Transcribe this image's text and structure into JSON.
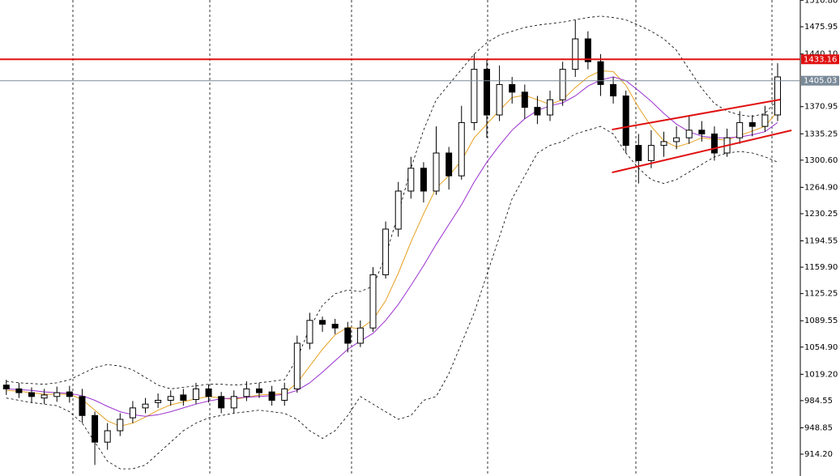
{
  "chart_data": {
    "type": "candlestick",
    "ylim": [
      885.5,
      1511.1
    ],
    "yticks": [
      {
        "value": 1510.8,
        "label": "1510.80"
      },
      1475.95,
      {
        "value": 1440.1,
        "label": "1440.10"
      },
      1370.95,
      1335.25,
      {
        "value": 1300.6,
        "label": "1300.60"
      },
      {
        "value": 1264.9,
        "label": "1264.90"
      },
      1230.25,
      1194.55,
      {
        "value": 1159.9,
        "label": "1159.90"
      },
      1125.25,
      1089.55,
      {
        "value": 1054.9,
        "label": "1054.90"
      },
      {
        "value": 1019.2,
        "label": "1019.20"
      },
      984.55,
      948.85,
      {
        "value": 914.2,
        "label": "914.20"
      }
    ],
    "up_color": "#ffffff",
    "down_color": "#000000",
    "open": [
      1005,
      1000,
      995,
      988,
      990,
      996,
      990,
      965,
      930,
      945,
      962,
      975,
      982,
      985,
      992,
      986,
      1000,
      990,
      975,
      990,
      1000,
      996,
      985,
      1000,
      1060,
      1090,
      1085,
      1080,
      1060,
      1080,
      1150,
      1210,
      1260,
      1290,
      1260,
      1310,
      1280,
      1350,
      1420,
      1360,
      1400,
      1390,
      1370,
      1360,
      1380,
      1420,
      1460,
      1430,
      1400,
      1385,
      1320,
      1300,
      1320,
      1325,
      1330,
      1340,
      1335,
      1310,
      1330,
      1350,
      1345,
      1360
    ],
    "high": [
      1012,
      1008,
      1002,
      1000,
      1003,
      1004,
      1000,
      970,
      955,
      968,
      984,
      988,
      994,
      998,
      1000,
      1008,
      1006,
      996,
      998,
      1010,
      1008,
      1004,
      1008,
      1070,
      1100,
      1095,
      1092,
      1088,
      1090,
      1160,
      1220,
      1272,
      1305,
      1298,
      1345,
      1318,
      1372,
      1440,
      1432,
      1425,
      1410,
      1400,
      1385,
      1392,
      1430,
      1485,
      1470,
      1440,
      1410,
      1392,
      1335,
      1340,
      1338,
      1345,
      1358,
      1352,
      1345,
      1342,
      1365,
      1360,
      1372,
      1428
    ],
    "low": [
      992,
      988,
      982,
      980,
      983,
      982,
      955,
      900,
      920,
      938,
      955,
      968,
      975,
      978,
      978,
      980,
      982,
      968,
      968,
      984,
      988,
      978,
      978,
      995,
      1052,
      1075,
      1072,
      1048,
      1055,
      1075,
      1145,
      1200,
      1250,
      1245,
      1255,
      1262,
      1275,
      1340,
      1330,
      1352,
      1375,
      1355,
      1348,
      1352,
      1372,
      1410,
      1420,
      1385,
      1375,
      1310,
      1270,
      1290,
      1305,
      1315,
      1322,
      1325,
      1300,
      1305,
      1322,
      1332,
      1338,
      1352
    ],
    "close": [
      1000,
      995,
      990,
      992,
      995,
      990,
      965,
      930,
      945,
      960,
      975,
      980,
      985,
      990,
      985,
      1000,
      990,
      975,
      990,
      1000,
      995,
      985,
      1000,
      1060,
      1090,
      1085,
      1080,
      1060,
      1080,
      1150,
      1210,
      1260,
      1290,
      1260,
      1310,
      1280,
      1350,
      1420,
      1360,
      1400,
      1390,
      1370,
      1360,
      1380,
      1420,
      1460,
      1430,
      1400,
      1385,
      1320,
      1300,
      1320,
      1325,
      1330,
      1340,
      1335,
      1310,
      1330,
      1350,
      1345,
      1360,
      1410
    ],
    "series": [
      {
        "color": "#e6a020",
        "dash": false,
        "values": [
          998,
          997,
          995,
          993,
          993,
          993,
          986,
          972,
          958,
          951,
          955,
          963,
          972,
          979,
          983,
          987,
          990,
          988,
          986,
          989,
          992,
          993,
          994,
          1008,
          1030,
          1052,
          1071,
          1081,
          1079,
          1091,
          1116,
          1152,
          1193,
          1230,
          1264,
          1280,
          1300,
          1330,
          1348,
          1366,
          1383,
          1386,
          1380,
          1374,
          1380,
          1396,
          1410,
          1418,
          1417,
          1399,
          1370,
          1345,
          1326,
          1318,
          1323,
          1330,
          1328,
          1327,
          1333,
          1339,
          1345,
          1365
        ]
      },
      {
        "color": "#9b30d0",
        "dash": false,
        "values": [
          1000,
          999,
          998,
          996,
          995,
          994,
          991,
          985,
          977,
          970,
          966,
          964,
          966,
          970,
          975,
          980,
          984,
          987,
          988,
          989,
          990,
          991,
          993,
          998,
          1008,
          1022,
          1037,
          1052,
          1063,
          1073,
          1090,
          1111,
          1136,
          1162,
          1190,
          1216,
          1242,
          1272,
          1298,
          1320,
          1340,
          1355,
          1366,
          1372,
          1376,
          1385,
          1398,
          1406,
          1410,
          1405,
          1392,
          1378,
          1362,
          1348,
          1338,
          1332,
          1330,
          1330,
          1331,
          1334,
          1338,
          1350
        ]
      },
      {
        "color": "#000000",
        "dash": true,
        "values": [
          1010,
          1008,
          1007,
          1006,
          1008,
          1012,
          1020,
          1028,
          1032,
          1030,
          1025,
          1015,
          1005,
          1000,
          1002,
          1004,
          1006,
          1006,
          1005,
          1006,
          1008,
          1010,
          1012,
          1040,
          1080,
          1110,
          1125,
          1130,
          1128,
          1135,
          1175,
          1230,
          1290,
          1340,
          1380,
          1400,
          1420,
          1440,
          1455,
          1465,
          1470,
          1475,
          1478,
          1480,
          1482,
          1485,
          1488,
          1490,
          1488,
          1485,
          1478,
          1470,
          1460,
          1445,
          1420,
          1395,
          1375,
          1365,
          1360,
          1358,
          1362,
          1380
        ]
      },
      {
        "color": "#000000",
        "dash": true,
        "values": [
          988,
          985,
          982,
          980,
          978,
          970,
          955,
          930,
          905,
          895,
          895,
          900,
          915,
          930,
          945,
          955,
          962,
          965,
          968,
          970,
          972,
          970,
          968,
          960,
          945,
          935,
          945,
          965,
          990,
          980,
          970,
          960,
          965,
          985,
          990,
          1020,
          1060,
          1100,
          1150,
          1200,
          1250,
          1280,
          1310,
          1320,
          1325,
          1335,
          1340,
          1345,
          1335,
          1310,
          1290,
          1275,
          1270,
          1275,
          1285,
          1295,
          1305,
          1310,
          1312,
          1310,
          1305,
          1298
        ]
      }
    ],
    "trendlines": [
      {
        "color": "#e01010",
        "x": [
          47.9,
          61.2
        ],
        "y": [
          1340.8,
          1380.2
        ]
      },
      {
        "color": "#e01010",
        "x": [
          47.9,
          62.1
        ],
        "y": [
          1284.4,
          1339.8
        ]
      }
    ],
    "hlines": [
      {
        "value": 1433.16,
        "color": "#e01010"
      },
      {
        "value": 1405.03,
        "color": "#7a8a99"
      }
    ]
  }
}
